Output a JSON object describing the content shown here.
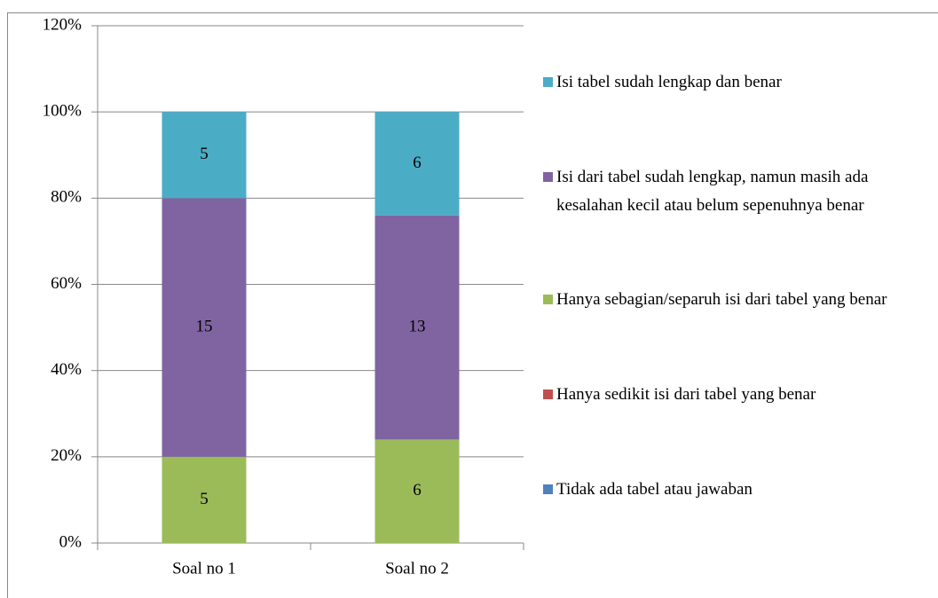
{
  "chart_data": {
    "type": "bar",
    "stack": "percent",
    "categories": [
      "Soal no 1",
      "Soal no 2"
    ],
    "series": [
      {
        "name": "Tidak ada tabel atau jawaban",
        "color": "#4f81bd",
        "values": [
          0,
          0
        ]
      },
      {
        "name": "Hanya sedikit isi dari tabel yang benar",
        "color": "#c0504d",
        "values": [
          0,
          0
        ]
      },
      {
        "name": "Hanya sebagian/separuh isi dari tabel yang benar",
        "color": "#9bbb59",
        "values": [
          5,
          6
        ]
      },
      {
        "name": "Isi dari tabel sudah lengkap, namun masih ada kesalahan kecil atau belum sepenuhnya benar",
        "color": "#8064a2",
        "values": [
          15,
          13
        ]
      },
      {
        "name": "Isi tabel sudah lengkap dan benar",
        "color": "#4bacc6",
        "values": [
          5,
          6
        ]
      }
    ],
    "ylim": [
      0,
      120
    ],
    "yticks": [
      {
        "value": 0,
        "label": "0%"
      },
      {
        "value": 20,
        "label": "20%"
      },
      {
        "value": 40,
        "label": "40%"
      },
      {
        "value": 60,
        "label": "60%"
      },
      {
        "value": 80,
        "label": "80%"
      },
      {
        "value": 100,
        "label": "100%"
      },
      {
        "value": 120,
        "label": "120%"
      }
    ],
    "grid": true,
    "legend": "right"
  }
}
